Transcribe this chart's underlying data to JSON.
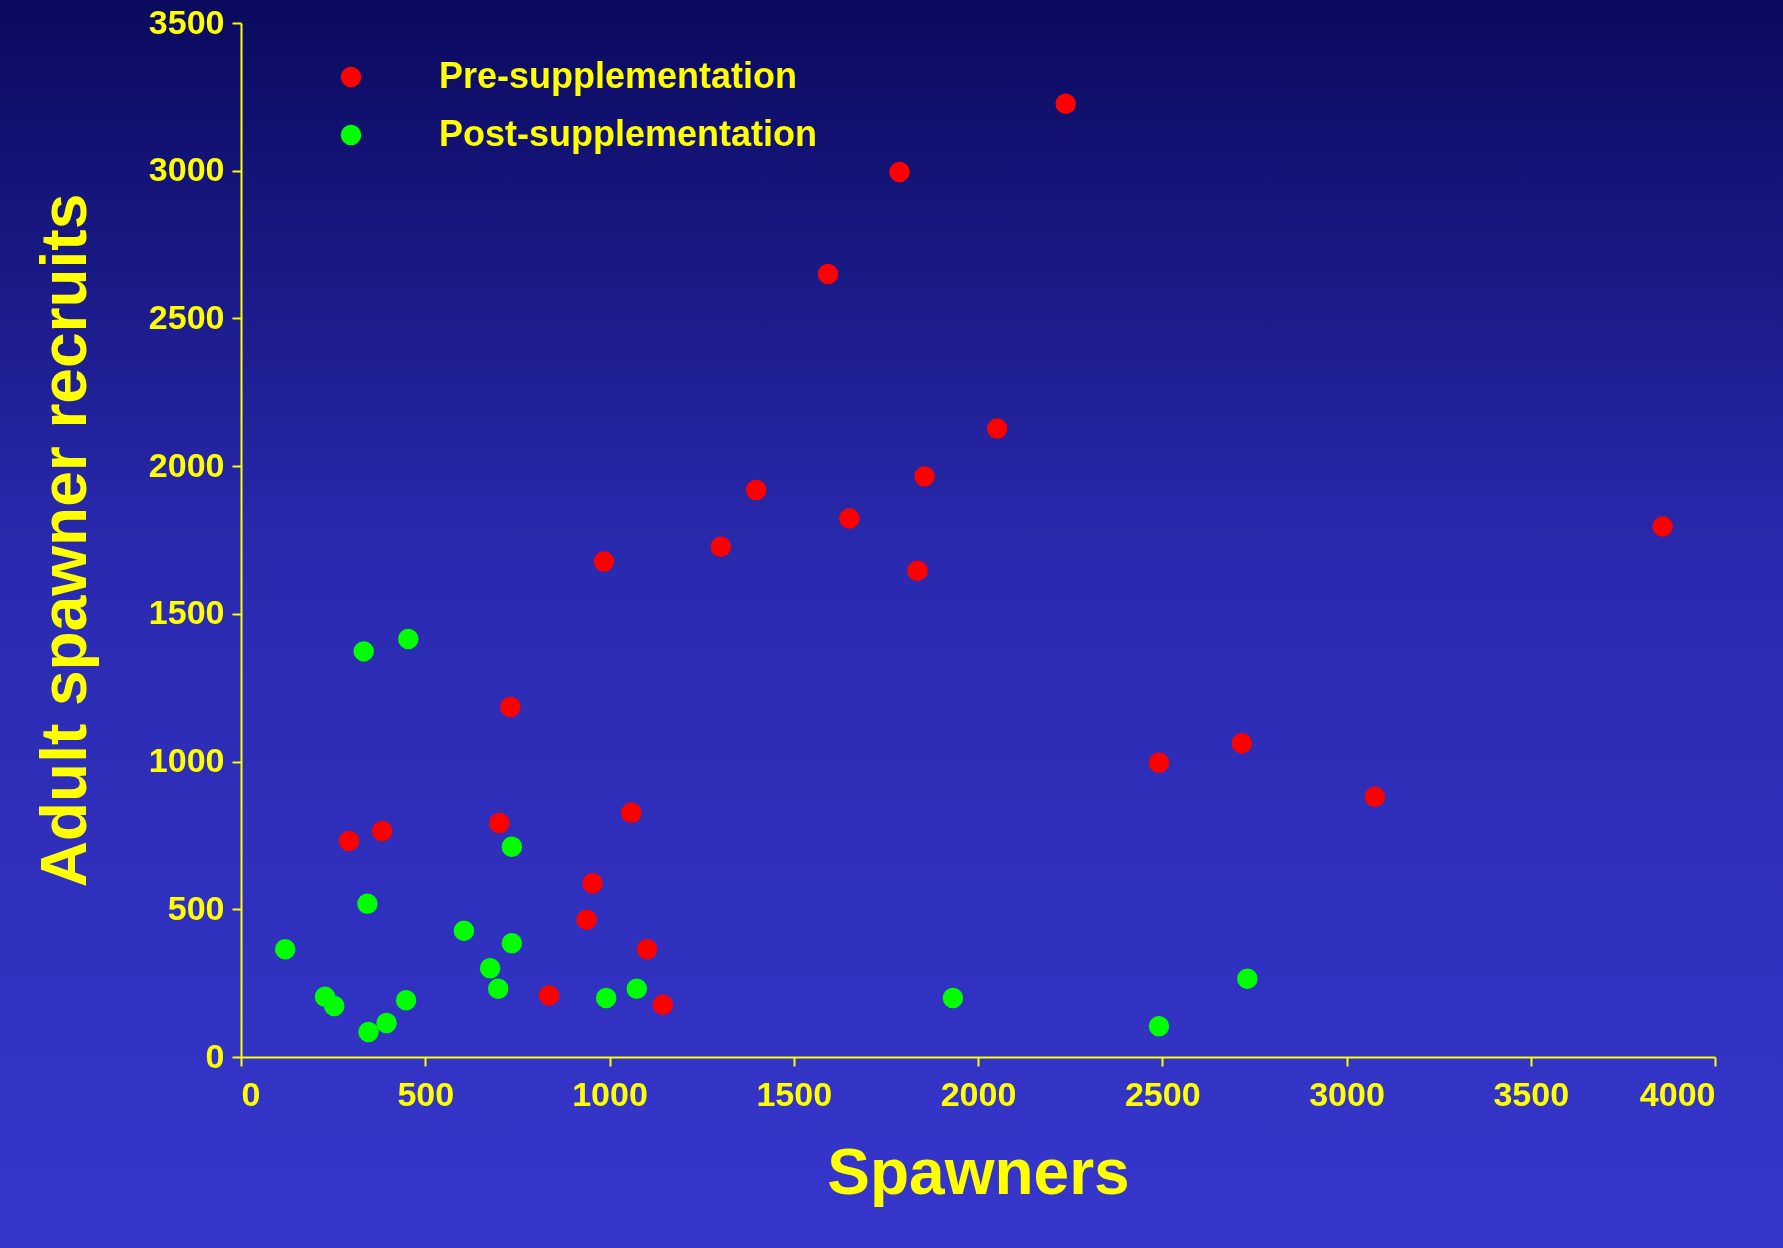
{
  "chart_data": {
    "type": "scatter",
    "xlabel": "Spawners",
    "ylabel": "Adult spawner recruits",
    "xlim": [
      0,
      4000
    ],
    "xticks": [
      0,
      500,
      1000,
      1500,
      2000,
      2500,
      3000,
      3500,
      4000
    ],
    "ylim": [
      0,
      3500
    ],
    "yticks": [
      0,
      500,
      1000,
      1500,
      2000,
      2500,
      3000,
      3500
    ],
    "grid": false,
    "legend": "top left",
    "marker": "circle",
    "series": [
      {
        "name": "Pre-supplementation",
        "color": "#ff0000",
        "x": [
          293,
          383,
          701,
          731,
          836,
          938,
          954,
          985,
          1059,
          1102,
          1145,
          1302,
          1398,
          1593,
          1651,
          1787,
          1836,
          1855,
          2052,
          2238,
          2491,
          2716,
          3077,
          3858
        ],
        "values": [
          731,
          765,
          792,
          1185,
          208,
          465,
          588,
          1677,
          827,
          365,
          177,
          1727,
          1919,
          2650,
          1823,
          2996,
          1646,
          1965,
          2127,
          3227,
          996,
          1062,
          881,
          1796
        ]
      },
      {
        "name": "Post-supplementation",
        "color": "#00ff00",
        "x": [
          120,
          228,
          253,
          333,
          343,
          346,
          395,
          448,
          454,
          605,
          676,
          698,
          735,
          735,
          991,
          1074,
          1932,
          2491,
          2731
        ],
        "values": [
          365,
          204,
          173,
          1373,
          519,
          85,
          115,
          192,
          1415,
          427,
          300,
          231,
          712,
          385,
          200,
          231,
          200,
          104,
          265
        ]
      }
    ]
  }
}
